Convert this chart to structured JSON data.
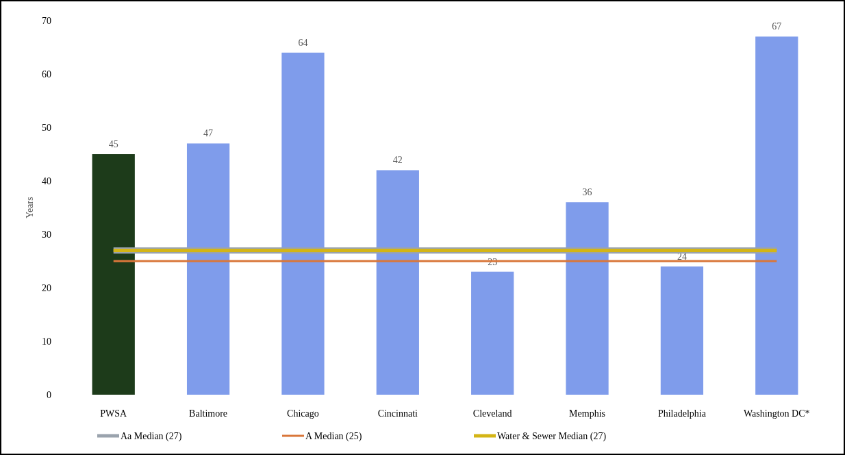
{
  "chart_data": {
    "type": "bar",
    "ylabel": "Years",
    "categories": [
      "PWSA",
      "Baltimore",
      "Chicago",
      "Cincinnati",
      "Cleveland",
      "Memphis",
      "Philadelphia",
      "Washington DC*"
    ],
    "series": [
      {
        "values": [
          45,
          47,
          64,
          42,
          23,
          36,
          24,
          67
        ],
        "value_labels": [
          "45",
          "47",
          "64",
          "42",
          "23",
          "36",
          "24",
          "67"
        ],
        "colors": [
          "#1d3b1a",
          "#7f9ceb",
          "#7f9ceb",
          "#7f9ceb",
          "#7f9ceb",
          "#7f9ceb",
          "#7f9ceb",
          "#7f9ceb"
        ]
      },
      {
        "type": "line",
        "name": "Aa Median (27)",
        "color": "#9aa3ad",
        "values": [
          27,
          27,
          27,
          27,
          27,
          27,
          27,
          27
        ]
      },
      {
        "type": "line",
        "name": "A Median (25)",
        "color": "#d9773a",
        "values": [
          25,
          25,
          25,
          25,
          25,
          25,
          25,
          25
        ]
      },
      {
        "type": "line",
        "name": "Water & Sewer Median (27)",
        "color": "#d4b516",
        "values": [
          27,
          27,
          27,
          27,
          27,
          27,
          27,
          27
        ]
      }
    ],
    "ylim": [
      0,
      70
    ],
    "yticks": [
      0,
      10,
      20,
      30,
      40,
      50,
      60,
      70
    ],
    "legend": "bottom",
    "grid": false
  }
}
